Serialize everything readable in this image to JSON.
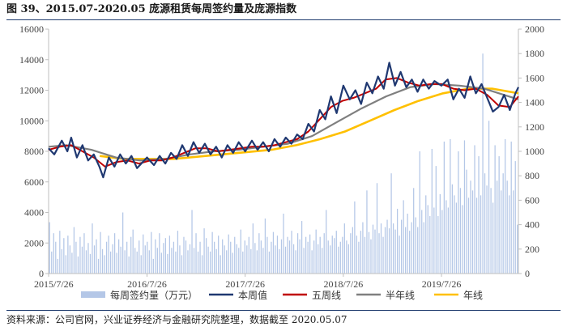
{
  "header": {
    "title": "图 39、2015.07-2020.05 庞源租赁每周签约量及庞源指数"
  },
  "footer": {
    "source": "资料来源：公司官网，兴业证券经济与金融研究院整理，数据截至 2020.05.07"
  },
  "colors": {
    "bar": "#b4c7e7",
    "weekly": "#1f3871",
    "ma5": "#c00000",
    "half_year": "#7f7f7f",
    "year": "#ffc000",
    "axis": "#bfbfbf"
  },
  "chart_data": {
    "type": "line",
    "x_ticks": [
      "2015/7/26",
      "2016/7/26",
      "2017/7/26",
      "2018/7/26",
      "2019/7/26"
    ],
    "x_range": [
      "2015/7/26",
      "2020/5/7"
    ],
    "y_left": {
      "ticks": [
        "0",
        "2000",
        "4000",
        "6000",
        "8000",
        "10000",
        "12000",
        "14000",
        "16000"
      ],
      "min": 0,
      "max": 16000
    },
    "y_right": {
      "ticks": [
        "0",
        "200",
        "400",
        "600",
        "800",
        "1000",
        "1200",
        "1400",
        "1600",
        "1800",
        "2000"
      ],
      "min": 0,
      "max": 2000
    },
    "legend": [
      "每周签约量（万元）",
      "本周值",
      "五周线",
      "半年线",
      "年线"
    ],
    "legend_position": "bottom",
    "series": [
      {
        "name": "每周签约量（万元）",
        "type": "bar",
        "axis": "right",
        "values": [
          420,
          180,
          330,
          260,
          120,
          350,
          200,
          290,
          150,
          310,
          230,
          170,
          380,
          260,
          140,
          300,
          220,
          330,
          190,
          250,
          160,
          410,
          230,
          280,
          120,
          340,
          200,
          150,
          260,
          310,
          180,
          240,
          330,
          170,
          280,
          220,
          500,
          190,
          260,
          140,
          300,
          360,
          210,
          180,
          270,
          150,
          320,
          230,
          260,
          190,
          340,
          120,
          280,
          210,
          330,
          170,
          250,
          290,
          160,
          310,
          210,
          260,
          180,
          350,
          230,
          150,
          300,
          270,
          190,
          240,
          520,
          210,
          330,
          180,
          260,
          150,
          370,
          290,
          220,
          180,
          340,
          260,
          200,
          310,
          150,
          280,
          230,
          190,
          320,
          260,
          170,
          300,
          240,
          210,
          360,
          180,
          270,
          230,
          300,
          200,
          410,
          250,
          190,
          330,
          270,
          210,
          450,
          300,
          180,
          260,
          340,
          230,
          310,
          200,
          280,
          490,
          220,
          300,
          270,
          350,
          240,
          190,
          330,
          280,
          430,
          210,
          300,
          260,
          320,
          190,
          270,
          360,
          240,
          300,
          210,
          330,
          520,
          270,
          230,
          310,
          290,
          350,
          220,
          260,
          300,
          410,
          270,
          240,
          330,
          380,
          590,
          310,
          260,
          350,
          420,
          300,
          680,
          340,
          280,
          400,
          360,
          740,
          330,
          410,
          300,
          380,
          440,
          370,
          820,
          410,
          360,
          530,
          310,
          440,
          600,
          380,
          490,
          350,
          420,
          700,
          460,
          380,
          1000,
          520,
          420,
          640,
          560,
          470,
          1020,
          540,
          880,
          470,
          650,
          520,
          1080,
          600,
          540,
          1100,
          730,
          640,
          580,
          1000,
          700,
          560,
          1090,
          850,
          620,
          760,
          680,
          1050,
          620,
          960,
          640,
          1800,
          820,
          720,
          1250,
          700,
          580,
          1050,
          760,
          960,
          680,
          820,
          1100,
          760,
          640,
          1080,
          680,
          920,
          400
        ]
      },
      {
        "name": "本周值",
        "type": "line",
        "axis": "left",
        "points": [
          [
            "2015/7/26",
            8200
          ],
          [
            "2015/8/16",
            7800
          ],
          [
            "2015/9/13",
            8700
          ],
          [
            "2015/10/4",
            8000
          ],
          [
            "2015/10/18",
            8900
          ],
          [
            "2015/11/8",
            7600
          ],
          [
            "2015/11/29",
            8400
          ],
          [
            "2015/12/20",
            7400
          ],
          [
            "2016/1/10",
            7800
          ],
          [
            "2016/1/31",
            7000
          ],
          [
            "2016/2/14",
            6300
          ],
          [
            "2016/3/6",
            7600
          ],
          [
            "2016/3/27",
            7000
          ],
          [
            "2016/4/17",
            7800
          ],
          [
            "2016/5/8",
            7200
          ],
          [
            "2016/5/29",
            7700
          ],
          [
            "2016/6/19",
            6900
          ],
          [
            "2016/7/10",
            7300
          ],
          [
            "2016/7/26",
            7600
          ],
          [
            "2016/8/21",
            7100
          ],
          [
            "2016/9/11",
            7700
          ],
          [
            "2016/10/2",
            7200
          ],
          [
            "2016/10/23",
            7900
          ],
          [
            "2016/11/13",
            7500
          ],
          [
            "2016/12/4",
            8400
          ],
          [
            "2016/12/25",
            7700
          ],
          [
            "2017/1/15",
            8600
          ],
          [
            "2017/2/5",
            7900
          ],
          [
            "2017/2/26",
            8500
          ],
          [
            "2017/3/19",
            7800
          ],
          [
            "2017/4/9",
            8300
          ],
          [
            "2017/4/30",
            7600
          ],
          [
            "2017/5/21",
            8400
          ],
          [
            "2017/6/11",
            7900
          ],
          [
            "2017/7/2",
            8600
          ],
          [
            "2017/7/26",
            8000
          ],
          [
            "2017/8/20",
            8700
          ],
          [
            "2017/9/10",
            8100
          ],
          [
            "2017/10/1",
            8600
          ],
          [
            "2017/10/22",
            8000
          ],
          [
            "2017/11/12",
            8800
          ],
          [
            "2017/12/3",
            8300
          ],
          [
            "2017/12/24",
            8900
          ],
          [
            "2018/1/14",
            8500
          ],
          [
            "2018/2/4",
            9100
          ],
          [
            "2018/2/25",
            8800
          ],
          [
            "2018/3/18",
            9800
          ],
          [
            "2018/4/8",
            9300
          ],
          [
            "2018/4/29",
            10700
          ],
          [
            "2018/5/20",
            10100
          ],
          [
            "2018/6/10",
            11600
          ],
          [
            "2018/7/1",
            10500
          ],
          [
            "2018/7/26",
            12300
          ],
          [
            "2018/8/19",
            11400
          ],
          [
            "2018/9/9",
            12000
          ],
          [
            "2018/9/30",
            11100
          ],
          [
            "2018/10/21",
            12500
          ],
          [
            "2018/11/11",
            11800
          ],
          [
            "2018/12/2",
            12900
          ],
          [
            "2018/12/23",
            12100
          ],
          [
            "2019/1/13",
            13800
          ],
          [
            "2019/2/3",
            12300
          ],
          [
            "2019/2/24",
            13200
          ],
          [
            "2019/3/17",
            12200
          ],
          [
            "2019/4/7",
            12700
          ],
          [
            "2019/4/28",
            11900
          ],
          [
            "2019/5/19",
            12700
          ],
          [
            "2019/6/9",
            12100
          ],
          [
            "2019/6/30",
            12600
          ],
          [
            "2019/7/26",
            12300
          ],
          [
            "2019/8/18",
            12700
          ],
          [
            "2019/9/8",
            11400
          ],
          [
            "2019/9/29",
            12100
          ],
          [
            "2019/10/20",
            11500
          ],
          [
            "2019/11/10",
            12900
          ],
          [
            "2019/12/1",
            11800
          ],
          [
            "2019/12/22",
            12400
          ],
          [
            "2020/1/12",
            11500
          ],
          [
            "2020/2/2",
            10600
          ],
          [
            "2020/2/23",
            10900
          ],
          [
            "2020/3/15",
            11700
          ],
          [
            "2020/4/5",
            10700
          ],
          [
            "2020/4/26",
            11800
          ],
          [
            "2020/5/7",
            12200
          ]
        ]
      },
      {
        "name": "五周线",
        "type": "line",
        "axis": "left",
        "points": [
          [
            "2015/7/26",
            8100
          ],
          [
            "2015/9/6",
            8300
          ],
          [
            "2015/10/18",
            8400
          ],
          [
            "2015/11/29",
            8000
          ],
          [
            "2016/1/10",
            7600
          ],
          [
            "2016/2/21",
            7000
          ],
          [
            "2016/4/3",
            7300
          ],
          [
            "2016/5/15",
            7400
          ],
          [
            "2016/6/26",
            7200
          ],
          [
            "2016/8/7",
            7400
          ],
          [
            "2016/9/18",
            7400
          ],
          [
            "2016/10/30",
            7600
          ],
          [
            "2016/12/11",
            7900
          ],
          [
            "2017/1/22",
            8200
          ],
          [
            "2017/3/5",
            8200
          ],
          [
            "2017/4/16",
            8000
          ],
          [
            "2017/5/28",
            8100
          ],
          [
            "2017/7/9",
            8200
          ],
          [
            "2017/8/20",
            8300
          ],
          [
            "2017/10/1",
            8300
          ],
          [
            "2017/11/12",
            8400
          ],
          [
            "2017/12/24",
            8600
          ],
          [
            "2018/2/4",
            8800
          ],
          [
            "2018/3/18",
            9300
          ],
          [
            "2018/4/29",
            10100
          ],
          [
            "2018/6/10",
            10900
          ],
          [
            "2018/7/22",
            11300
          ],
          [
            "2018/9/2",
            11500
          ],
          [
            "2018/10/14",
            11800
          ],
          [
            "2018/11/25",
            12100
          ],
          [
            "2018/12/30",
            12700
          ],
          [
            "2019/2/10",
            12800
          ],
          [
            "2019/3/24",
            12500
          ],
          [
            "2019/5/5",
            12300
          ],
          [
            "2019/6/16",
            12400
          ],
          [
            "2019/7/28",
            12400
          ],
          [
            "2019/9/8",
            12100
          ],
          [
            "2019/10/20",
            12000
          ],
          [
            "2019/12/1",
            12100
          ],
          [
            "2020/1/12",
            11700
          ],
          [
            "2020/2/23",
            11000
          ],
          [
            "2020/4/5",
            10900
          ],
          [
            "2020/5/7",
            11600
          ]
        ]
      },
      {
        "name": "半年线",
        "type": "line",
        "axis": "left",
        "points": [
          [
            "2015/7/26",
            8300
          ],
          [
            "2015/10/1",
            8400
          ],
          [
            "2016/1/1",
            8100
          ],
          [
            "2016/4/1",
            7600
          ],
          [
            "2016/7/1",
            7400
          ],
          [
            "2016/10/1",
            7500
          ],
          [
            "2017/1/1",
            7800
          ],
          [
            "2017/4/1",
            8000
          ],
          [
            "2017/7/1",
            8100
          ],
          [
            "2017/10/1",
            8300
          ],
          [
            "2018/1/1",
            8500
          ],
          [
            "2018/4/1",
            9000
          ],
          [
            "2018/7/1",
            9900
          ],
          [
            "2018/10/1",
            10800
          ],
          [
            "2019/1/1",
            11600
          ],
          [
            "2019/4/1",
            12200
          ],
          [
            "2019/7/1",
            12400
          ],
          [
            "2019/10/1",
            12300
          ],
          [
            "2020/1/1",
            12100
          ],
          [
            "2020/4/1",
            11600
          ],
          [
            "2020/5/7",
            11400
          ]
        ]
      },
      {
        "name": "年线",
        "type": "line",
        "axis": "left",
        "points": [
          [
            "2016/2/1",
            7700
          ],
          [
            "2016/5/1",
            7500
          ],
          [
            "2016/8/1",
            7500
          ],
          [
            "2016/11/1",
            7500
          ],
          [
            "2017/2/1",
            7650
          ],
          [
            "2017/5/1",
            7800
          ],
          [
            "2017/8/1",
            7950
          ],
          [
            "2017/11/1",
            8100
          ],
          [
            "2018/2/1",
            8400
          ],
          [
            "2018/5/1",
            8800
          ],
          [
            "2018/8/1",
            9300
          ],
          [
            "2018/11/1",
            10000
          ],
          [
            "2019/2/1",
            10700
          ],
          [
            "2019/5/1",
            11300
          ],
          [
            "2019/8/1",
            11800
          ],
          [
            "2019/11/1",
            12100
          ],
          [
            "2020/2/1",
            12100
          ],
          [
            "2020/5/7",
            11800
          ]
        ]
      }
    ]
  }
}
